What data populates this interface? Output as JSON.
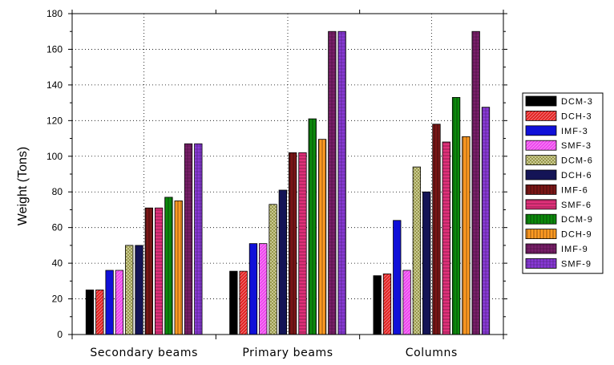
{
  "chart_data": {
    "type": "bar",
    "title": "",
    "xlabel": "",
    "ylabel": "Weight (Tons)",
    "ylim": [
      0,
      180
    ],
    "yticks": [
      0,
      20,
      40,
      60,
      80,
      100,
      120,
      140,
      160,
      180
    ],
    "grid": true,
    "legend_position": "right",
    "categories": [
      "Secondary beams",
      "Primary beams",
      "Columns"
    ],
    "series": [
      {
        "name": "DCM-3",
        "color": "#000000",
        "pattern": "solid",
        "values": [
          25,
          35.5,
          33
        ]
      },
      {
        "name": "DCH-3",
        "color": "#e32222",
        "pattern": "diagonal",
        "values": [
          25,
          35.5,
          34
        ]
      },
      {
        "name": "IMF-3",
        "color": "#1010d8",
        "pattern": "solid",
        "values": [
          36,
          51,
          64
        ]
      },
      {
        "name": "SMF-3",
        "color": "#ee44ee",
        "pattern": "diagonal",
        "values": [
          36,
          51,
          36
        ]
      },
      {
        "name": "DCM-6",
        "color": "#8c8c3a",
        "pattern": "crosshatch",
        "values": [
          50,
          73,
          94
        ]
      },
      {
        "name": "DCH-6",
        "color": "#141456",
        "pattern": "solid",
        "values": [
          50,
          81,
          80
        ]
      },
      {
        "name": "IMF-6",
        "color": "#7a1616",
        "pattern": "vertical",
        "values": [
          71,
          102,
          118
        ]
      },
      {
        "name": "SMF-6",
        "color": "#e0307a",
        "pattern": "horizontal",
        "values": [
          71,
          102,
          108
        ]
      },
      {
        "name": "DCM-9",
        "color": "#0c8a0c",
        "pattern": "vertical",
        "values": [
          77,
          121,
          133
        ]
      },
      {
        "name": "DCH-9",
        "color": "#ff9a22",
        "pattern": "vertical",
        "values": [
          75,
          109.5,
          111
        ]
      },
      {
        "name": "IMF-9",
        "color": "#7a1f6a",
        "pattern": "grid",
        "values": [
          107,
          170,
          170
        ]
      },
      {
        "name": "SMF-9",
        "color": "#8a3ad8",
        "pattern": "grid",
        "values": [
          107,
          170,
          127.5
        ]
      }
    ]
  }
}
